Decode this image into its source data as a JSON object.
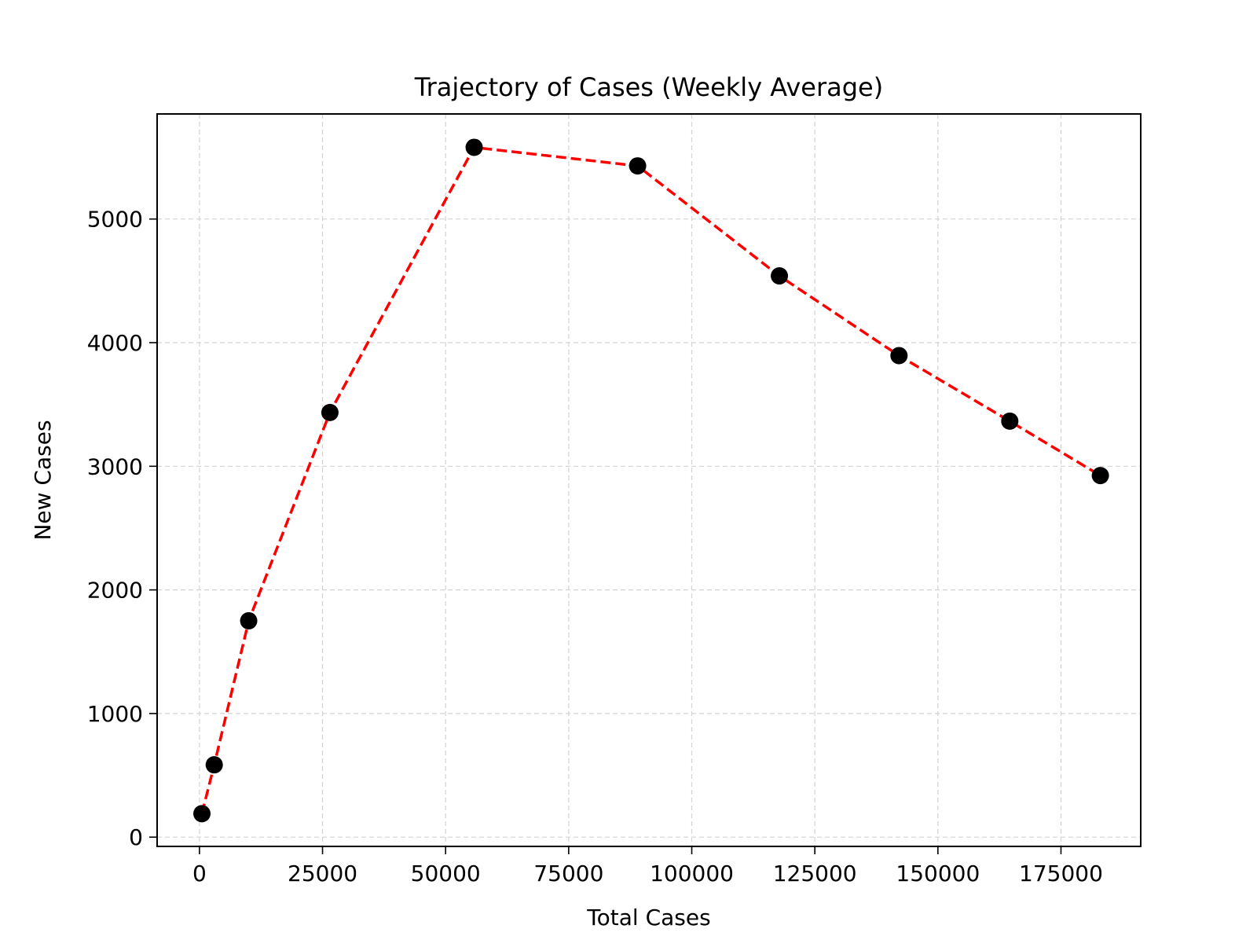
{
  "chart_data": {
    "type": "line",
    "title": "Trajectory of Cases (Weekly Average)",
    "xlabel": "Total Cases",
    "ylabel": "New Cases",
    "xlim": [
      -8600,
      191200
    ],
    "ylim": [
      -75,
      5850
    ],
    "grid": true,
    "xticks": [
      0,
      25000,
      50000,
      75000,
      100000,
      125000,
      150000,
      175000
    ],
    "yticks": [
      0,
      1000,
      2000,
      3000,
      4000,
      5000
    ],
    "series": [
      {
        "line_color": "#ff0000",
        "line_style": "dashed",
        "marker_color": "#000000",
        "x": [
          500,
          3000,
          10000,
          26500,
          55800,
          89000,
          117800,
          142100,
          164600,
          183000
        ],
        "y": [
          190,
          585,
          1750,
          3435,
          5580,
          5430,
          4540,
          3895,
          3365,
          2925
        ]
      }
    ]
  }
}
